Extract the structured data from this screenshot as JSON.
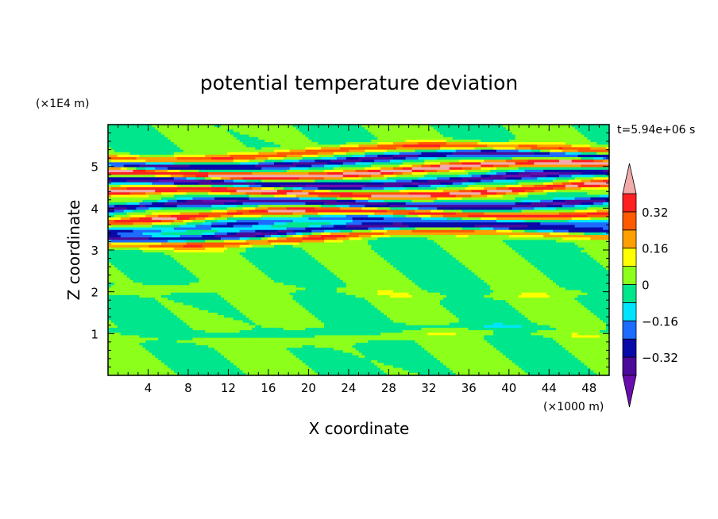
{
  "chart_data": {
    "type": "heatmap",
    "title": "potential temperature deviation",
    "xlabel": "X coordinate",
    "ylabel": "Z coordinate",
    "x_unit": "(×1000 m)",
    "y_unit": "(×1E4 m)",
    "time_label": "t=5.94e+06 s",
    "xlim": [
      0,
      50
    ],
    "ylim": [
      0,
      6
    ],
    "x_ticks": [
      4,
      8,
      12,
      16,
      20,
      24,
      28,
      32,
      36,
      40,
      44,
      48
    ],
    "y_ticks": [
      1,
      2,
      3,
      4,
      5
    ],
    "colorbar": {
      "levels": [
        -0.4,
        -0.32,
        -0.24,
        -0.16,
        -0.08,
        0,
        0.08,
        0.16,
        0.24,
        0.32,
        0.4
      ],
      "labeled_levels": [
        -0.32,
        -0.16,
        0,
        0.16,
        0.32
      ],
      "labels": [
        "0.32",
        "0.16",
        "0",
        "−0.16",
        "−0.32"
      ],
      "colors_low_to_high": [
        "#6a0dad",
        "#4b0a9a",
        "#0a0aa8",
        "#1e6cff",
        "#00e5ff",
        "#00e68c",
        "#8cff1a",
        "#ffff00",
        "#ffa000",
        "#ff5a00",
        "#ff2020",
        "#f2aaaa"
      ],
      "extend": "both"
    },
    "field_bands": [
      {
        "z": 0.92,
        "value": 0.05
      },
      {
        "z": 1.05,
        "value": -0.05
      },
      {
        "z": 2.0,
        "value": 0.04
      },
      {
        "z": 3.2,
        "value": 0.3
      },
      {
        "z": 3.35,
        "value": -0.35
      },
      {
        "z": 3.55,
        "value": -0.22
      },
      {
        "z": 3.75,
        "value": 0.38
      },
      {
        "z": 4.0,
        "value": -0.38
      },
      {
        "z": 4.3,
        "value": 0.42
      },
      {
        "z": 4.55,
        "value": -0.4
      },
      {
        "z": 4.8,
        "value": 0.45
      },
      {
        "z": 5.05,
        "value": -0.35
      },
      {
        "z": 5.25,
        "value": 0.3
      }
    ]
  }
}
